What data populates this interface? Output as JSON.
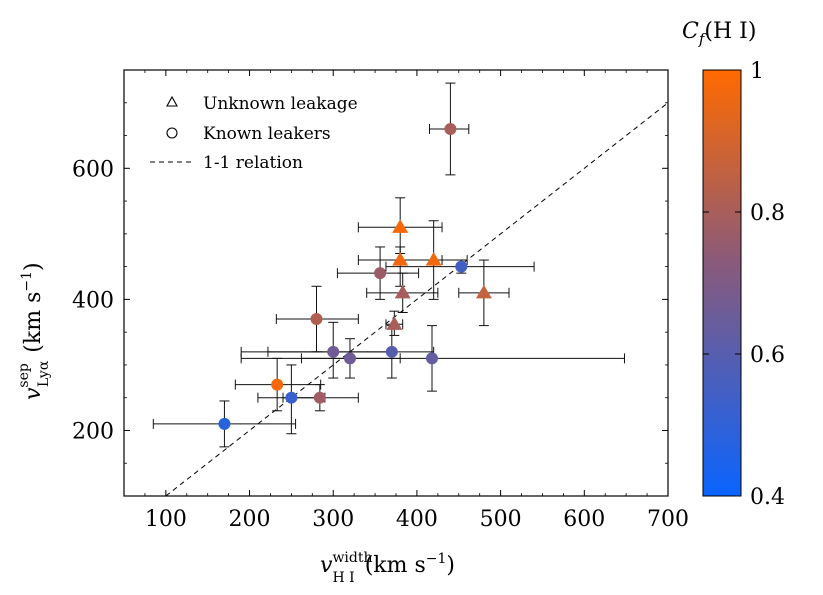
{
  "chart_data": {
    "type": "scatter",
    "xlabel": {
      "main": "v",
      "sup": "width",
      "sub": "H I",
      "units": "(km s",
      "units_exp": "−1",
      "units_close": ")"
    },
    "ylabel": {
      "main": "v",
      "sup": "sep",
      "sub": "Lyα",
      "units": "(km s",
      "units_exp": "−1",
      "units_close": ")"
    },
    "xlim": [
      50,
      700
    ],
    "ylim": [
      100,
      750
    ],
    "x_ticks": [
      100,
      200,
      300,
      400,
      500,
      600,
      700
    ],
    "y_ticks": [
      200,
      400,
      600
    ],
    "grid": false,
    "legend_position": "top-left",
    "legend": [
      {
        "marker": "triangle",
        "label": "Unknown leakage"
      },
      {
        "marker": "circle",
        "label": "Known leakers"
      },
      {
        "marker": "dashed-line",
        "label": "1-1 relation"
      }
    ],
    "reference_line": {
      "name": "1-1 relation",
      "points": [
        [
          100,
          100
        ],
        [
          700,
          700
        ]
      ]
    },
    "colorbar": {
      "label": "C",
      "label_sub": "f",
      "label_paren": "(H I)",
      "range": [
        0.4,
        1.0
      ],
      "ticks": [
        0.4,
        0.6,
        0.8,
        1
      ],
      "tick_labels": [
        "0.4",
        "0.6",
        "0.8",
        "1"
      ],
      "color_low": "#0a64ff",
      "color_mid": "#8a5a7a",
      "color_high": "#ff6a00"
    },
    "series": [
      {
        "name": "Unknown leakage",
        "marker": "triangle",
        "points": [
          {
            "x": 380,
            "y": 510,
            "xerr": [
              330,
              430
            ],
            "yerr": [
              470,
              555
            ],
            "cf": 0.98
          },
          {
            "x": 380,
            "y": 460,
            "xerr": [
              330,
              430
            ],
            "yerr": [
              420,
              480
            ],
            "cf": 0.97
          },
          {
            "x": 420,
            "y": 460,
            "xerr": [
              380,
              460
            ],
            "yerr": [
              400,
              520
            ],
            "cf": 0.97
          },
          {
            "x": 383,
            "y": 410,
            "xerr": [
              340,
              425
            ],
            "yerr": [
              380,
              440
            ],
            "cf": 0.8
          },
          {
            "x": 480,
            "y": 410,
            "xerr": [
              450,
              510
            ],
            "yerr": [
              360,
              460
            ],
            "cf": 0.86
          },
          {
            "x": 373,
            "y": 362,
            "xerr": [
              363,
              383
            ],
            "yerr": [
              345,
              382
            ],
            "cf": 0.8
          }
        ]
      },
      {
        "name": "Known leakers",
        "marker": "circle",
        "points": [
          {
            "x": 440,
            "y": 660,
            "xerr": [
              415,
              462
            ],
            "yerr": [
              590,
              730
            ],
            "cf": 0.8
          },
          {
            "x": 356,
            "y": 440,
            "xerr": [
              305,
              402
            ],
            "yerr": [
              400,
              480
            ],
            "cf": 0.77
          },
          {
            "x": 453,
            "y": 450,
            "xerr": [
              363,
              540
            ],
            "yerr": [
              440,
              460
            ],
            "cf": 0.55
          },
          {
            "x": 280,
            "y": 370,
            "xerr": [
              232,
              330
            ],
            "yerr": [
              320,
              420
            ],
            "cf": 0.82
          },
          {
            "x": 300,
            "y": 320,
            "xerr": [
              222,
              372
            ],
            "yerr": [
              280,
              365
            ],
            "cf": 0.66
          },
          {
            "x": 320,
            "y": 310,
            "xerr": [
              262,
              380
            ],
            "yerr": [
              280,
              340
            ],
            "cf": 0.66
          },
          {
            "x": 370,
            "y": 320,
            "xerr": [
              190,
              420
            ],
            "yerr": [
              280,
              360
            ],
            "cf": 0.6
          },
          {
            "x": 418,
            "y": 310,
            "xerr": [
              190,
              648
            ],
            "yerr": [
              260,
              360
            ],
            "cf": 0.63
          },
          {
            "x": 233,
            "y": 270,
            "xerr": [
              183,
              285
            ],
            "yerr": [
              230,
              310
            ],
            "cf": 0.98
          },
          {
            "x": 284,
            "y": 250,
            "xerr": [
              240,
              330
            ],
            "yerr": [
              230,
              270
            ],
            "cf": 0.78
          },
          {
            "x": 250,
            "y": 250,
            "xerr": [
              210,
              290
            ],
            "yerr": [
              195,
              300
            ],
            "cf": 0.52
          },
          {
            "x": 170,
            "y": 210,
            "xerr": [
              85,
              255
            ],
            "yerr": [
              175,
              245
            ],
            "cf": 0.48
          }
        ]
      }
    ]
  }
}
